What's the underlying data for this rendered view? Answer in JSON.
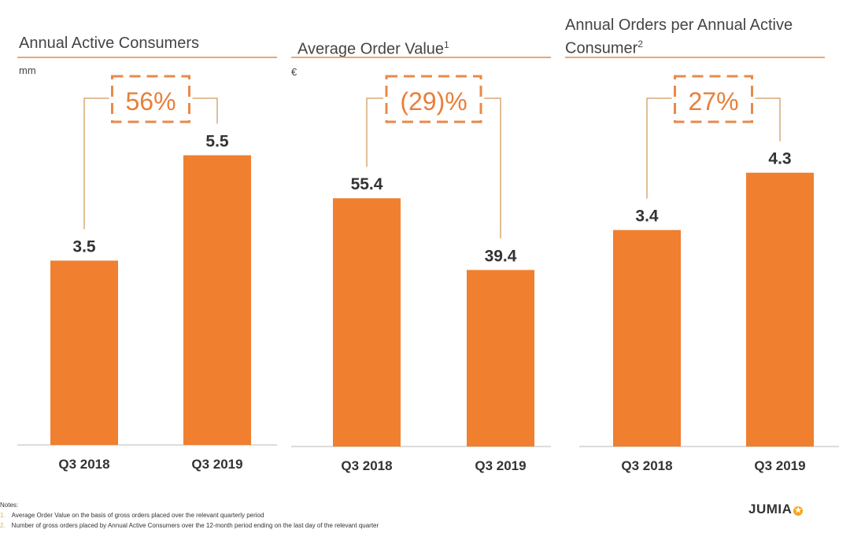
{
  "chart_data": [
    {
      "type": "bar",
      "title": "Annual Active Consumers",
      "title_sup": "",
      "unit": "mm",
      "categories": [
        "Q3 2018",
        "Q3 2019"
      ],
      "values": [
        3.5,
        5.5
      ],
      "data_labels": [
        "3.5",
        "5.5"
      ],
      "change_label": "56%",
      "bar_color": "#f07f2f"
    },
    {
      "type": "bar",
      "title": "Average Order Value",
      "title_sup": "1",
      "unit": "€",
      "categories": [
        "Q3 2018",
        "Q3 2019"
      ],
      "values": [
        55.4,
        39.4
      ],
      "data_labels": [
        "55.4",
        "39.4"
      ],
      "change_label": "(29)%",
      "bar_color": "#f07f2f"
    },
    {
      "type": "bar",
      "title": "Annual Orders per Annual Active Consumer",
      "title_sup": "2",
      "unit": "",
      "categories": [
        "Q3 2018",
        "Q3 2019"
      ],
      "values": [
        3.4,
        4.3
      ],
      "data_labels": [
        "3.4",
        "4.3"
      ],
      "change_label": "27%",
      "bar_color": "#f07f2f"
    }
  ],
  "notes": {
    "heading": "Notes:",
    "items": [
      {
        "num": "1.",
        "text": "Average Order Value on the basis of gross orders placed over the relevant quarterly period"
      },
      {
        "num": "2.",
        "text": "Number of gross orders placed by Annual Active Consumers over the 12-month period ending on the last day of the relevant quarter"
      }
    ]
  },
  "logo": {
    "text": "JUMIA",
    "icon": "star-icon"
  },
  "colors": {
    "accent": "#f07f2f",
    "rule": "#e8a877",
    "bracket": "#d9a877"
  }
}
